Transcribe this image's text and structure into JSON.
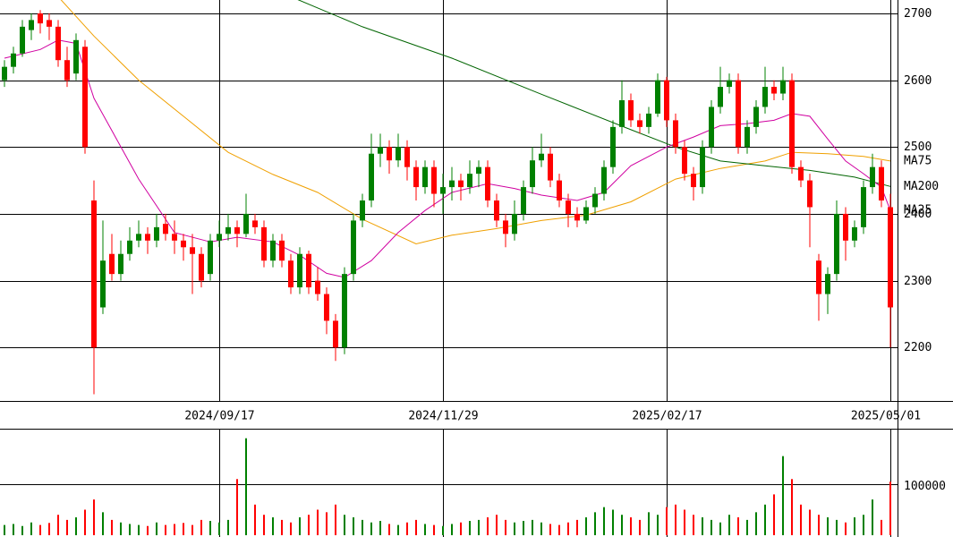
{
  "chart_data": {
    "type": "candlestick",
    "up_color": "#008000",
    "down_color": "#ff0000",
    "grid": true,
    "xlim": [
      0,
      100
    ],
    "xticks": [
      {
        "value": 24,
        "label": "2024/09/17"
      },
      {
        "value": 49,
        "label": "2024/11/29"
      },
      {
        "value": 74,
        "label": "2025/02/17"
      },
      {
        "value": 99,
        "label": "2025/05/01"
      }
    ],
    "ylim": [
      2120,
      2720
    ],
    "yticks": [
      2200,
      2300,
      2400,
      2500,
      2600,
      2700
    ],
    "open": [
      2600,
      2620,
      2640,
      2675,
      2700,
      2690,
      2680,
      2630,
      2610,
      2650,
      2420,
      2260,
      2340,
      2310,
      2340,
      2360,
      2370,
      2360,
      2385,
      2370,
      2360,
      2350,
      2340,
      2310,
      2360,
      2370,
      2380,
      2370,
      2390,
      2380,
      2330,
      2360,
      2330,
      2290,
      2340,
      2300,
      2280,
      2240,
      2200,
      2310,
      2390,
      2420,
      2490,
      2500,
      2480,
      2500,
      2470,
      2440,
      2470,
      2430,
      2440,
      2450,
      2440,
      2460,
      2470,
      2420,
      2390,
      2370,
      2400,
      2440,
      2480,
      2490,
      2450,
      2420,
      2400,
      2390,
      2410,
      2430,
      2470,
      2530,
      2570,
      2540,
      2530,
      2550,
      2600,
      2540,
      2500,
      2460,
      2440,
      2500,
      2560,
      2590,
      2600,
      2500,
      2530,
      2560,
      2590,
      2580,
      2600,
      2470,
      2450,
      2330,
      2280,
      2310,
      2400,
      2360,
      2380,
      2440,
      2470,
      2410
    ],
    "high": [
      2630,
      2650,
      2690,
      2700,
      2705,
      2700,
      2690,
      2650,
      2670,
      2660,
      2450,
      2390,
      2370,
      2360,
      2380,
      2390,
      2380,
      2400,
      2400,
      2390,
      2370,
      2370,
      2350,
      2370,
      2390,
      2400,
      2390,
      2430,
      2400,
      2390,
      2370,
      2370,
      2340,
      2350,
      2345,
      2320,
      2290,
      2250,
      2320,
      2400,
      2430,
      2520,
      2520,
      2510,
      2520,
      2510,
      2480,
      2480,
      2480,
      2460,
      2470,
      2460,
      2480,
      2480,
      2480,
      2430,
      2400,
      2420,
      2450,
      2500,
      2520,
      2500,
      2460,
      2430,
      2410,
      2420,
      2440,
      2480,
      2540,
      2600,
      2580,
      2550,
      2560,
      2610,
      2605,
      2550,
      2510,
      2470,
      2510,
      2570,
      2620,
      2610,
      2610,
      2540,
      2570,
      2620,
      2600,
      2620,
      2610,
      2480,
      2460,
      2340,
      2320,
      2420,
      2410,
      2390,
      2450,
      2490,
      2480,
      2430
    ],
    "low": [
      2590,
      2610,
      2635,
      2660,
      2670,
      2660,
      2620,
      2590,
      2600,
      2490,
      2130,
      2250,
      2300,
      2300,
      2330,
      2350,
      2340,
      2350,
      2360,
      2340,
      2330,
      2280,
      2290,
      2300,
      2350,
      2360,
      2350,
      2365,
      2370,
      2320,
      2320,
      2320,
      2280,
      2280,
      2280,
      2270,
      2220,
      2180,
      2190,
      2300,
      2380,
      2410,
      2470,
      2460,
      2470,
      2450,
      2420,
      2430,
      2410,
      2400,
      2420,
      2420,
      2430,
      2440,
      2410,
      2380,
      2350,
      2360,
      2390,
      2430,
      2470,
      2440,
      2410,
      2380,
      2380,
      2385,
      2400,
      2420,
      2460,
      2520,
      2530,
      2520,
      2520,
      2545,
      2530,
      2490,
      2450,
      2420,
      2430,
      2490,
      2550,
      2580,
      2490,
      2490,
      2520,
      2550,
      2570,
      2570,
      2460,
      2440,
      2350,
      2240,
      2250,
      2300,
      2330,
      2350,
      2370,
      2430,
      2410,
      2200
    ],
    "close": [
      2620,
      2640,
      2680,
      2690,
      2685,
      2680,
      2630,
      2600,
      2660,
      2500,
      2200,
      2330,
      2310,
      2340,
      2360,
      2370,
      2360,
      2380,
      2370,
      2360,
      2350,
      2340,
      2300,
      2360,
      2370,
      2380,
      2370,
      2400,
      2380,
      2330,
      2360,
      2330,
      2290,
      2340,
      2290,
      2280,
      2240,
      2200,
      2310,
      2390,
      2420,
      2490,
      2500,
      2480,
      2500,
      2470,
      2440,
      2470,
      2430,
      2440,
      2450,
      2440,
      2460,
      2470,
      2420,
      2390,
      2370,
      2400,
      2440,
      2480,
      2490,
      2450,
      2420,
      2400,
      2390,
      2410,
      2430,
      2470,
      2530,
      2570,
      2540,
      2530,
      2550,
      2600,
      2540,
      2500,
      2460,
      2440,
      2500,
      2560,
      2590,
      2600,
      2500,
      2530,
      2560,
      2590,
      2580,
      2600,
      2470,
      2450,
      2410,
      2280,
      2310,
      2400,
      2360,
      2380,
      2440,
      2470,
      2420,
      2260
    ],
    "series": [
      {
        "name": "MA75",
        "color": "#f0a000",
        "x": [
          6,
          10,
          15,
          20,
          25,
          30,
          35,
          40,
          46,
          50,
          55,
          60,
          65,
          70,
          75,
          80,
          85,
          88,
          92,
          96,
          99
        ],
        "values": [
          2725,
          2666,
          2600,
          2546,
          2492,
          2459,
          2432,
          2392,
          2355,
          2368,
          2378,
          2390,
          2398,
          2418,
          2452,
          2468,
          2479,
          2492,
          2490,
          2486,
          2479
        ]
      },
      {
        "name": "MA200",
        "color": "#006400",
        "x": [
          32,
          40,
          50,
          60,
          70,
          75,
          80,
          85,
          90,
          95,
          99
        ],
        "values": [
          2725,
          2680,
          2633,
          2579,
          2526,
          2500,
          2479,
          2472,
          2465,
          2455,
          2441
        ]
      },
      {
        "name": "MA25",
        "color": "#d000a0",
        "x": [
          0,
          4,
          6,
          8,
          10,
          15,
          19,
          23,
          26,
          30,
          33,
          36,
          38,
          41,
          44,
          47,
          50,
          54,
          57,
          60,
          64,
          67,
          70,
          74,
          77,
          80,
          83,
          86,
          88,
          90,
          92,
          94,
          96,
          98,
          99
        ],
        "values": [
          2633,
          2646,
          2660,
          2655,
          2573,
          2452,
          2372,
          2358,
          2365,
          2358,
          2338,
          2311,
          2305,
          2330,
          2372,
          2405,
          2432,
          2445,
          2438,
          2428,
          2420,
          2432,
          2472,
          2500,
          2515,
          2532,
          2535,
          2540,
          2550,
          2546,
          2512,
          2479,
          2460,
          2440,
          2405
        ]
      }
    ],
    "volume": {
      "ylim": [
        0,
        207000
      ],
      "yticks": [
        100000
      ],
      "values": [
        20000,
        22000,
        18000,
        25000,
        20000,
        24000,
        40000,
        30000,
        35000,
        50000,
        70000,
        45000,
        30000,
        25000,
        22000,
        20000,
        18000,
        25000,
        20000,
        22000,
        24000,
        20000,
        30000,
        28000,
        25000,
        30000,
        110000,
        190000,
        60000,
        40000,
        35000,
        30000,
        25000,
        35000,
        40000,
        50000,
        45000,
        60000,
        40000,
        35000,
        30000,
        25000,
        28000,
        22000,
        20000,
        25000,
        30000,
        22000,
        20000,
        18000,
        22000,
        25000,
        28000,
        30000,
        35000,
        40000,
        30000,
        25000,
        28000,
        30000,
        25000,
        22000,
        20000,
        25000,
        30000,
        35000,
        45000,
        55000,
        50000,
        40000,
        35000,
        30000,
        45000,
        40000,
        55000,
        60000,
        50000,
        40000,
        35000,
        30000,
        25000,
        40000,
        35000,
        30000,
        45000,
        60000,
        80000,
        155000,
        110000,
        60000,
        50000,
        40000,
        35000,
        30000,
        25000,
        35000,
        40000,
        70000,
        30000,
        105000
      ]
    }
  }
}
